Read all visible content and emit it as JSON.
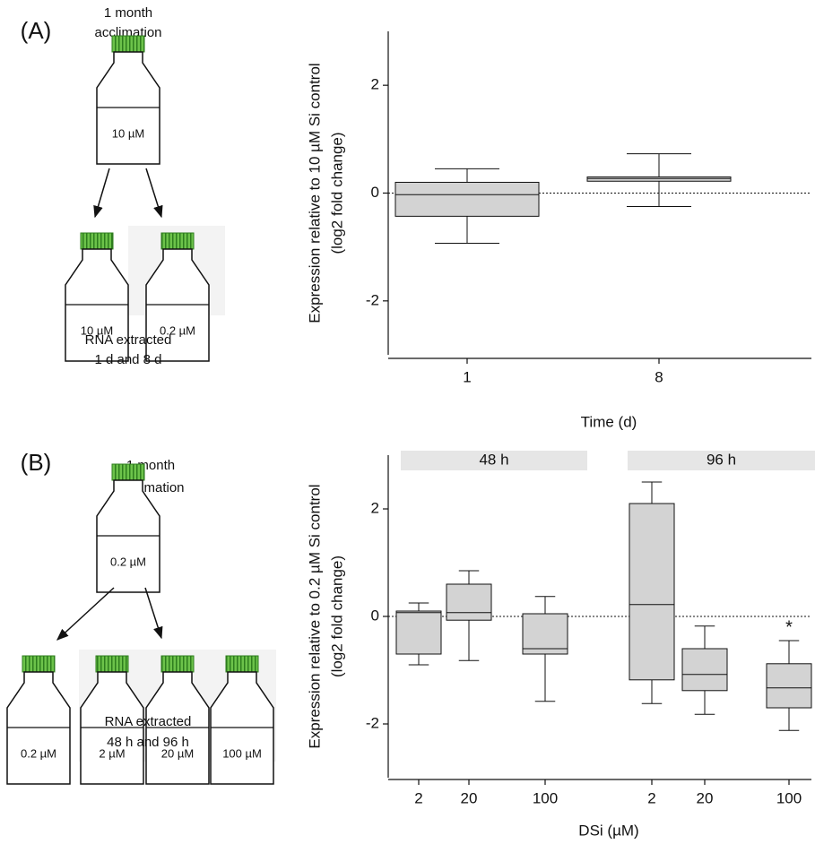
{
  "panels": [
    {
      "label": "(A)",
      "top_text": [
        "1 month",
        "acclimation"
      ],
      "start_bottle": "10 µM",
      "bottles": [
        "10 µM",
        "0.2 µM"
      ],
      "bottom_text": [
        "RNA extracted",
        "1 d and 8 d"
      ]
    },
    {
      "label": "(B)",
      "top_text": [
        "1 month",
        "acclimation"
      ],
      "start_bottle": "0.2 µM",
      "bottles": [
        "0.2 µM",
        "2 µM",
        "20 µM",
        "100 µM"
      ],
      "bottom_text": [
        "RNA extracted",
        "48 h and 96 h"
      ]
    }
  ],
  "chart_data": [
    {
      "type": "box",
      "y_label": [
        "Expression relative to 10 µM Si control",
        "(log2 fold change)"
      ],
      "x_label": "Time (d)",
      "ylim": [
        -3,
        3
      ],
      "yticks": [
        -2,
        0,
        2
      ],
      "reference_line": 0,
      "color": "#d3d3d3",
      "groups": [
        {
          "categories": [
            "1",
            "8"
          ],
          "boxes": [
            {
              "min": -0.93,
              "q1": -0.43,
              "median": -0.03,
              "q3": 0.2,
              "max": 0.45
            },
            {
              "min": -0.25,
              "q1": 0.22,
              "median": 0.27,
              "q3": 0.3,
              "max": 0.73
            }
          ]
        }
      ]
    },
    {
      "type": "box",
      "y_label": [
        "Expression relative to 0.2 µM Si control",
        "(log2 fold change)"
      ],
      "x_label": "DSi (µM)",
      "ylim": [
        -3,
        3
      ],
      "yticks": [
        -2,
        0,
        2
      ],
      "reference_line": 0,
      "color": "#d3d3d3",
      "groups": [
        {
          "label": "48 h",
          "categories": [
            "2",
            "20",
            "100"
          ],
          "boxes": [
            {
              "min": -0.9,
              "q1": -0.7,
              "median": 0.07,
              "q3": 0.1,
              "max": 0.25
            },
            {
              "min": -0.82,
              "q1": -0.07,
              "median": 0.07,
              "q3": 0.6,
              "max": 0.85
            },
            {
              "min": -1.58,
              "q1": -0.7,
              "median": -0.6,
              "q3": 0.05,
              "max": 0.37
            }
          ]
        },
        {
          "label": "96 h",
          "categories": [
            "2",
            "20",
            "100"
          ],
          "boxes": [
            {
              "min": -1.62,
              "q1": -1.18,
              "median": 0.22,
              "q3": 2.1,
              "max": 2.5
            },
            {
              "min": -1.82,
              "q1": -1.38,
              "median": -1.08,
              "q3": -0.6,
              "max": -0.18
            },
            {
              "min": -2.12,
              "q1": -1.7,
              "median": -1.33,
              "q3": -0.88,
              "max": -0.45,
              "label": "*"
            }
          ]
        }
      ]
    }
  ]
}
